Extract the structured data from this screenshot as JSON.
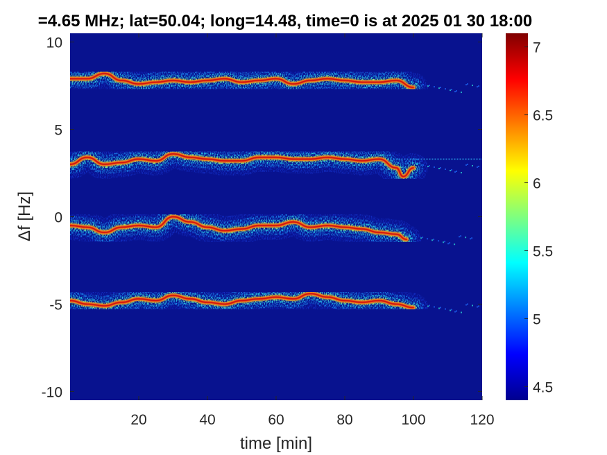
{
  "chart_data": {
    "type": "heatmap",
    "title": "=4.65 MHz;  lat=50.04; long=14.48, time=0 is at 2025 01 30 18:00",
    "xlabel": "time [min]",
    "ylabel": "Δf [Hz]",
    "xlim": [
      0,
      120
    ],
    "ylim": [
      -10.5,
      10.5
    ],
    "xticks": [
      20,
      40,
      60,
      80,
      100,
      120
    ],
    "yticks": [
      -10,
      -5,
      0,
      5,
      10
    ],
    "xtick_labels": [
      "20",
      "40",
      "60",
      "80",
      "100",
      "120"
    ],
    "ytick_labels": [
      "-10",
      "-5",
      "0",
      "5",
      "10"
    ],
    "colorbar": {
      "range": [
        4.4,
        7.1
      ],
      "ticks": [
        4.5,
        5,
        5.5,
        6,
        6.5,
        7
      ],
      "tick_labels": [
        "4.5",
        "5",
        "5.5",
        "6",
        "6.5",
        "7"
      ],
      "colormap": "jet"
    },
    "background_color": "#08128f",
    "traces": [
      {
        "name": "",
        "end": 102,
        "values": [
          [
            0,
            7.9
          ],
          [
            5,
            7.9
          ],
          [
            10,
            8.2
          ],
          [
            15,
            7.8
          ],
          [
            20,
            7.6
          ],
          [
            25,
            7.7
          ],
          [
            30,
            7.8
          ],
          [
            35,
            7.7
          ],
          [
            40,
            7.8
          ],
          [
            45,
            7.9
          ],
          [
            50,
            7.7
          ],
          [
            55,
            7.8
          ],
          [
            60,
            7.9
          ],
          [
            65,
            7.6
          ],
          [
            70,
            7.8
          ],
          [
            75,
            7.9
          ],
          [
            80,
            7.8
          ],
          [
            85,
            7.7
          ],
          [
            90,
            7.7
          ],
          [
            95,
            7.8
          ],
          [
            100,
            7.4
          ]
        ]
      },
      {
        "name": "",
        "end": 102,
        "values": [
          [
            0,
            3.0
          ],
          [
            5,
            3.4
          ],
          [
            10,
            3.0
          ],
          [
            15,
            3.1
          ],
          [
            20,
            3.3
          ],
          [
            25,
            3.2
          ],
          [
            30,
            3.6
          ],
          [
            35,
            3.4
          ],
          [
            40,
            3.3
          ],
          [
            45,
            3.2
          ],
          [
            50,
            3.2
          ],
          [
            55,
            3.4
          ],
          [
            60,
            3.4
          ],
          [
            65,
            3.3
          ],
          [
            70,
            3.3
          ],
          [
            75,
            3.4
          ],
          [
            80,
            3.3
          ],
          [
            85,
            3.2
          ],
          [
            90,
            3.3
          ],
          [
            95,
            2.8
          ],
          [
            97,
            2.3
          ],
          [
            100,
            2.8
          ]
        ]
      },
      {
        "name": "",
        "end": 98,
        "values": [
          [
            0,
            -0.5
          ],
          [
            5,
            -0.6
          ],
          [
            10,
            -0.9
          ],
          [
            15,
            -0.6
          ],
          [
            20,
            -0.5
          ],
          [
            25,
            -0.6
          ],
          [
            30,
            0.0
          ],
          [
            35,
            -0.3
          ],
          [
            40,
            -0.6
          ],
          [
            45,
            -0.8
          ],
          [
            50,
            -0.7
          ],
          [
            55,
            -0.5
          ],
          [
            60,
            -0.5
          ],
          [
            65,
            -0.3
          ],
          [
            70,
            -0.6
          ],
          [
            75,
            -0.5
          ],
          [
            80,
            -0.6
          ],
          [
            85,
            -0.7
          ],
          [
            90,
            -0.9
          ],
          [
            95,
            -1.0
          ],
          [
            98,
            -1.3
          ]
        ]
      },
      {
        "name": "",
        "end": 100,
        "values": [
          [
            0,
            -4.8
          ],
          [
            5,
            -5.0
          ],
          [
            10,
            -5.1
          ],
          [
            15,
            -4.9
          ],
          [
            20,
            -4.7
          ],
          [
            25,
            -4.8
          ],
          [
            30,
            -4.5
          ],
          [
            35,
            -4.7
          ],
          [
            40,
            -4.9
          ],
          [
            45,
            -5.0
          ],
          [
            50,
            -4.8
          ],
          [
            55,
            -4.7
          ],
          [
            60,
            -4.6
          ],
          [
            65,
            -4.7
          ],
          [
            70,
            -4.4
          ],
          [
            75,
            -4.6
          ],
          [
            80,
            -4.8
          ],
          [
            85,
            -4.9
          ],
          [
            90,
            -4.8
          ],
          [
            95,
            -5.0
          ],
          [
            100,
            -5.2
          ]
        ]
      }
    ],
    "carrier_line": {
      "y": 3.3,
      "x": [
        90,
        120
      ]
    }
  }
}
